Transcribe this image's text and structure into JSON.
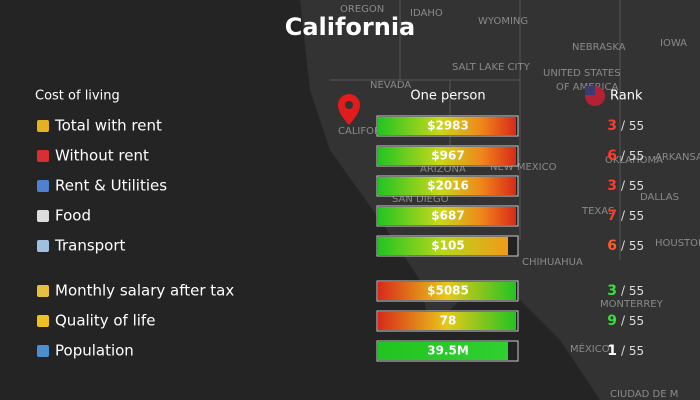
{
  "title": "California",
  "header": {
    "section": "Cost of living",
    "column": "One person",
    "rank": "Rank"
  },
  "rows": [
    {
      "label": "Total with rent",
      "value": "$2983",
      "rank": 3,
      "total": 55
    },
    {
      "label": "Without rent",
      "value": "$967",
      "rank": 6,
      "total": 55
    },
    {
      "label": "Rent & Utilities",
      "value": "$2016",
      "rank": 3,
      "total": 55
    },
    {
      "label": "Food",
      "value": "$687",
      "rank": 7,
      "total": 55
    },
    {
      "label": "Transport",
      "value": "$105",
      "rank": 6,
      "total": 55
    },
    {
      "label": "Monthly salary after tax",
      "value": "$5085",
      "rank": 3,
      "total": 55
    },
    {
      "label": "Quality of life",
      "value": "78",
      "rank": 9,
      "total": 55
    },
    {
      "label": "Population",
      "value": "39.5M",
      "rank": 1,
      "total": 55
    }
  ],
  "map_labels": [
    "OREGON",
    "IDAHO",
    "WYOMING",
    "NEBRASKA",
    "IOWA",
    "SALT LAKE CITY",
    "NEVADA",
    "UNITED STATES",
    "OF AMERICA",
    "CALIFORNIA",
    "ARIZONA",
    "NEW MEXICO",
    "OKLAHOMA",
    "ARKANSAS",
    "SAN DIEGO",
    "TEXAS",
    "DALLAS",
    "CHIHUAHUA",
    "HOUSTON",
    "MONTERREY",
    "MÉXICO",
    "CIUDAD DE M"
  ]
}
